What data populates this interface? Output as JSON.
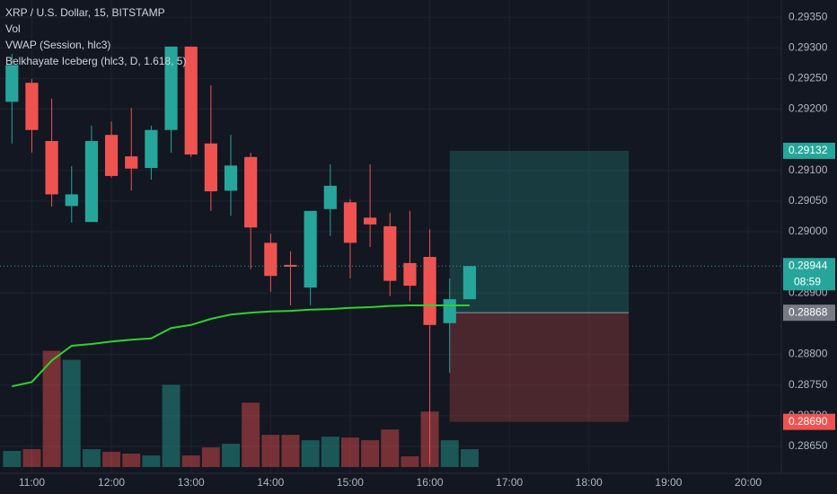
{
  "chart_data": {
    "type": "candlestick",
    "title": "XRP / U.S. Dollar, 15, BITSTAMP",
    "indicators": [
      "Vol",
      "VWAP (Session, hlc3)",
      "Belkhayate Iceberg (hlc3, D, 1.618, 5)"
    ],
    "x": [
      "10:45",
      "11:00",
      "11:15",
      "11:30",
      "11:45",
      "12:00",
      "12:15",
      "12:30",
      "12:45",
      "13:00",
      "13:15",
      "13:30",
      "13:45",
      "14:00",
      "14:15",
      "14:30",
      "14:45",
      "15:00",
      "15:15",
      "15:30",
      "15:45",
      "16:00",
      "16:15",
      "16:30"
    ],
    "open": [
      0.29212,
      0.29243,
      0.29148,
      0.29042,
      0.29016,
      0.29158,
      0.29123,
      0.29104,
      0.29166,
      0.29302,
      0.29144,
      0.29067,
      0.29122,
      0.28982,
      0.28946,
      0.28909,
      0.29037,
      0.29048,
      0.29023,
      0.29009,
      0.28949,
      0.28959,
      0.28851,
      0.2889
    ],
    "high": [
      0.2929,
      0.29249,
      0.29217,
      0.29107,
      0.29173,
      0.2918,
      0.29202,
      0.29173,
      0.29302,
      0.29302,
      0.29239,
      0.29158,
      0.29129,
      0.28997,
      0.28968,
      0.29034,
      0.2911,
      0.29053,
      0.2911,
      0.29031,
      0.29034,
      0.29004,
      0.28924,
      0.28944
    ],
    "low": [
      0.29144,
      0.29129,
      0.29041,
      0.29015,
      0.29016,
      0.29088,
      0.29067,
      0.29085,
      0.29129,
      0.29122,
      0.29034,
      0.29026,
      0.28939,
      0.28902,
      0.2888,
      0.2888,
      0.28993,
      0.28924,
      0.28975,
      0.28895,
      0.28887,
      0.28622,
      0.2877,
      0.2889
    ],
    "close": [
      0.29272,
      0.29166,
      0.29061,
      0.29061,
      0.29148,
      0.29091,
      0.29103,
      0.29166,
      0.29302,
      0.29126,
      0.29066,
      0.29108,
      0.29007,
      0.28928,
      0.28943,
      0.29034,
      0.29075,
      0.28982,
      0.29012,
      0.2892,
      0.28912,
      0.28848,
      0.2889,
      0.28944
    ],
    "volume": [
      18,
      20,
      130,
      120,
      20,
      17,
      15,
      13,
      92,
      13,
      22,
      26,
      72,
      36,
      36,
      30,
      34,
      33,
      30,
      42,
      12,
      62,
      30,
      20
    ],
    "volume_ylim": [
      0,
      360
    ],
    "vwap": [
      0.28748,
      0.28755,
      0.2879,
      0.28814,
      0.28817,
      0.28821,
      0.28824,
      0.28826,
      0.28843,
      0.28848,
      0.28858,
      0.28865,
      0.28868,
      0.2887,
      0.28871,
      0.28873,
      0.28874,
      0.28876,
      0.28877,
      0.28879,
      0.2888,
      0.2888,
      0.2888,
      0.2888
    ],
    "up_color": "#26a69a",
    "down_color": "#ef5350",
    "vwap_color": "#2fd12f",
    "xlim": [
      "10:36",
      "20:25"
    ],
    "xticks": [
      "11:00",
      "12:00",
      "13:00",
      "14:00",
      "15:00",
      "16:00",
      "17:00",
      "18:00",
      "19:00",
      "20:00"
    ],
    "ylim": [
      0.28606,
      0.29378
    ],
    "yticks": [
      {
        "value": 0.2935,
        "label": "0.29350"
      },
      {
        "value": 0.293,
        "label": "0.29300"
      },
      {
        "value": 0.2925,
        "label": "0.29250"
      },
      {
        "value": 0.292,
        "label": "0.29200"
      },
      {
        "value": 0.291,
        "label": "0.29100"
      },
      {
        "value": 0.2905,
        "label": "0.29050"
      },
      {
        "value": 0.29,
        "label": "0.29000"
      },
      {
        "value": 0.289,
        "label": "0.28900"
      },
      {
        "value": 0.288,
        "label": "0.28800"
      },
      {
        "value": 0.2875,
        "label": "0.28750"
      },
      {
        "value": 0.287,
        "label": "0.28700"
      },
      {
        "value": 0.2865,
        "label": "0.28650"
      }
    ],
    "grid": true,
    "position": {
      "start": "16:15",
      "end": "18:30",
      "entry": 0.28868,
      "target": 0.29132,
      "stop": 0.2869,
      "entry_label": "0.28868",
      "target_label": "0.29132",
      "stop_label": "0.28690"
    },
    "last_price": {
      "value": 0.28944,
      "label": "0.28944",
      "countdown": "08:59"
    }
  }
}
